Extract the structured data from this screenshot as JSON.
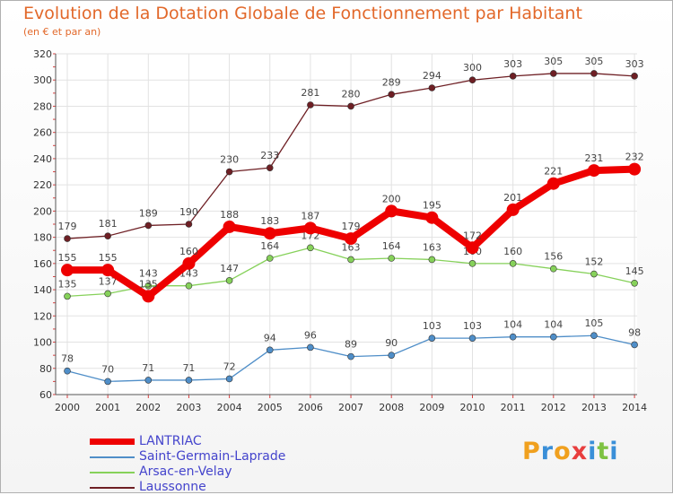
{
  "header": {
    "title": "Evolution de la Dotation Globale de Fonctionnement par Habitant",
    "subtitle": "(en € et par an)"
  },
  "chart_data": {
    "type": "line",
    "title": "Evolution de la Dotation Globale de Fonctionnement par Habitant",
    "subtitle": "(en € et par an)",
    "xlabel": "",
    "ylabel": "",
    "x": [
      "2000",
      "2001",
      "2002",
      "2003",
      "2004",
      "2005",
      "2006",
      "2007",
      "2008",
      "2009",
      "2010",
      "2011",
      "2012",
      "2013",
      "2014"
    ],
    "ylim": [
      60,
      320
    ],
    "yticks": [
      60,
      80,
      100,
      120,
      140,
      160,
      180,
      200,
      220,
      240,
      260,
      280,
      300,
      320
    ],
    "grid": true,
    "legend_position": "bottom-left",
    "series": [
      {
        "name": "LANTRIAC",
        "color": "#ee0000",
        "values": [
          155,
          155,
          135,
          160,
          188,
          183,
          187,
          179,
          200,
          195,
          172,
          201,
          221,
          231,
          232
        ]
      },
      {
        "name": "Saint-Germain-Laprade",
        "color": "#4f8ec8",
        "values": [
          78,
          70,
          71,
          71,
          72,
          94,
          96,
          89,
          90,
          103,
          103,
          104,
          104,
          105,
          98
        ]
      },
      {
        "name": "Arsac-en-Velay",
        "color": "#86d15a",
        "values": [
          135,
          137,
          143,
          143,
          147,
          164,
          172,
          163,
          164,
          163,
          160,
          160,
          156,
          152,
          145
        ]
      },
      {
        "name": "Laussonne",
        "color": "#6e1f24",
        "values": [
          179,
          181,
          189,
          190,
          230,
          233,
          281,
          280,
          289,
          294,
          300,
          303,
          305,
          305,
          303
        ]
      }
    ]
  },
  "legend": {
    "items": [
      {
        "label": "LANTRIAC",
        "color": "#ee0000"
      },
      {
        "label": "Saint-Germain-Laprade",
        "color": "#4f8ec8"
      },
      {
        "label": "Arsac-en-Velay",
        "color": "#86d15a"
      },
      {
        "label": "Laussonne",
        "color": "#6e1f24"
      }
    ]
  },
  "branding": {
    "logo_text": "Proxiti",
    "logo_colors": [
      "#f0a01e",
      "#3a8fd8",
      "#f0a01e",
      "#e83e3e",
      "#3a8fd8",
      "#7ec242",
      "#3a8fd8"
    ]
  }
}
